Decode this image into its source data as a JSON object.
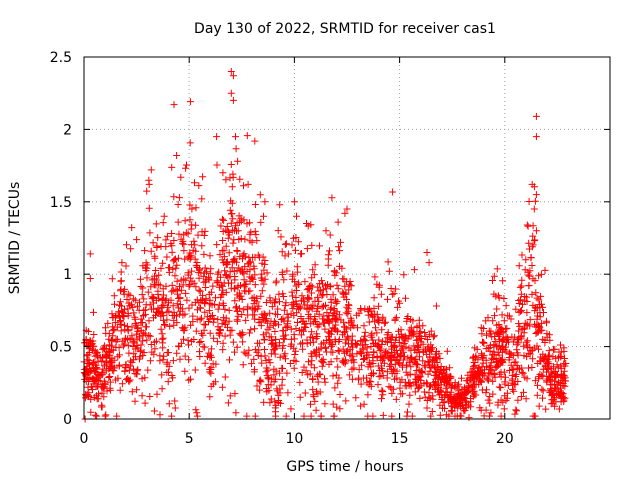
{
  "chart_data": {
    "type": "scatter",
    "title": "Day 130 of 2022, SRMTID for receiver cas1",
    "xlabel": "GPS time / hours",
    "ylabel": "SRMTID / TECUs",
    "xlim": [
      0,
      25
    ],
    "ylim": [
      0,
      2.5
    ],
    "xticks": [
      0,
      5,
      10,
      15,
      20
    ],
    "yticks": [
      0,
      0.5,
      1,
      1.5,
      2,
      2.5
    ],
    "xtick_labels": [
      "0",
      "5",
      "10",
      "15",
      "20"
    ],
    "ytick_labels": [
      "0",
      "0.5",
      "1",
      "1.5",
      "2",
      "2.5"
    ],
    "grid": true,
    "marker": "+",
    "color": "#ff0000",
    "series": [
      {
        "name": "SRMTID",
        "profile": [
          {
            "x": 0.0,
            "y": 0.3
          },
          {
            "x": 0.3,
            "y": 0.4
          },
          {
            "x": 0.6,
            "y": 0.28
          },
          {
            "x": 1.0,
            "y": 0.3
          },
          {
            "x": 1.5,
            "y": 0.55
          },
          {
            "x": 2.0,
            "y": 0.55
          },
          {
            "x": 2.5,
            "y": 0.48
          },
          {
            "x": 3.0,
            "y": 0.75
          },
          {
            "x": 3.5,
            "y": 0.8
          },
          {
            "x": 4.0,
            "y": 0.72
          },
          {
            "x": 4.5,
            "y": 0.8
          },
          {
            "x": 5.0,
            "y": 0.85
          },
          {
            "x": 5.5,
            "y": 0.85
          },
          {
            "x": 6.0,
            "y": 0.6
          },
          {
            "x": 6.5,
            "y": 0.8
          },
          {
            "x": 7.0,
            "y": 1.0
          },
          {
            "x": 7.5,
            "y": 0.85
          },
          {
            "x": 8.0,
            "y": 0.8
          },
          {
            "x": 8.5,
            "y": 0.7
          },
          {
            "x": 9.0,
            "y": 0.45
          },
          {
            "x": 9.5,
            "y": 0.65
          },
          {
            "x": 10.0,
            "y": 0.7
          },
          {
            "x": 10.5,
            "y": 0.65
          },
          {
            "x": 11.0,
            "y": 0.6
          },
          {
            "x": 11.5,
            "y": 0.7
          },
          {
            "x": 12.0,
            "y": 0.65
          },
          {
            "x": 12.5,
            "y": 0.55
          },
          {
            "x": 13.0,
            "y": 0.45
          },
          {
            "x": 13.5,
            "y": 0.45
          },
          {
            "x": 14.0,
            "y": 0.45
          },
          {
            "x": 14.5,
            "y": 0.45
          },
          {
            "x": 15.0,
            "y": 0.45
          },
          {
            "x": 15.5,
            "y": 0.42
          },
          {
            "x": 16.0,
            "y": 0.38
          },
          {
            "x": 16.5,
            "y": 0.35
          },
          {
            "x": 17.0,
            "y": 0.25
          },
          {
            "x": 17.5,
            "y": 0.15
          },
          {
            "x": 18.0,
            "y": 0.12
          },
          {
            "x": 18.5,
            "y": 0.25
          },
          {
            "x": 19.0,
            "y": 0.35
          },
          {
            "x": 19.5,
            "y": 0.4
          },
          {
            "x": 20.0,
            "y": 0.45
          },
          {
            "x": 20.5,
            "y": 0.45
          },
          {
            "x": 21.0,
            "y": 0.6
          },
          {
            "x": 21.3,
            "y": 0.85
          },
          {
            "x": 21.7,
            "y": 0.5
          },
          {
            "x": 22.0,
            "y": 0.4
          },
          {
            "x": 22.3,
            "y": 0.22
          },
          {
            "x": 22.9,
            "y": 0.25
          }
        ],
        "notable_points": [
          {
            "x": 0.05,
            "y": 0.0
          },
          {
            "x": 0.1,
            "y": 0.55
          },
          {
            "x": 0.3,
            "y": 1.14
          },
          {
            "x": 0.3,
            "y": 0.97
          },
          {
            "x": 1.8,
            "y": 1.08
          },
          {
            "x": 3.2,
            "y": 1.72
          },
          {
            "x": 3.1,
            "y": 1.62
          },
          {
            "x": 4.4,
            "y": 1.82
          },
          {
            "x": 4.6,
            "y": 1.67
          },
          {
            "x": 5.6,
            "y": 1.52
          },
          {
            "x": 6.3,
            "y": 1.95
          },
          {
            "x": 6.6,
            "y": 1.7
          },
          {
            "x": 7.0,
            "y": 2.4
          },
          {
            "x": 7.1,
            "y": 2.37
          },
          {
            "x": 7.0,
            "y": 2.25
          },
          {
            "x": 7.1,
            "y": 2.2
          },
          {
            "x": 7.2,
            "y": 1.95
          },
          {
            "x": 7.3,
            "y": 1.78
          },
          {
            "x": 7.8,
            "y": 1.62
          },
          {
            "x": 8.6,
            "y": 1.5
          },
          {
            "x": 9.1,
            "y": 0.05
          },
          {
            "x": 9.3,
            "y": 1.48
          },
          {
            "x": 10.0,
            "y": 1.5
          },
          {
            "x": 10.1,
            "y": 1.4
          },
          {
            "x": 12.5,
            "y": 1.45
          },
          {
            "x": 12.4,
            "y": 1.42
          },
          {
            "x": 15.0,
            "y": 0.8
          },
          {
            "x": 16.3,
            "y": 1.15
          },
          {
            "x": 16.4,
            "y": 1.08
          },
          {
            "x": 18.3,
            "y": 0.01
          },
          {
            "x": 19.2,
            "y": 0.7
          },
          {
            "x": 21.5,
            "y": 2.09
          },
          {
            "x": 21.5,
            "y": 1.95
          },
          {
            "x": 21.3,
            "y": 1.62
          },
          {
            "x": 21.5,
            "y": 1.55
          },
          {
            "x": 21.4,
            "y": 1.45
          },
          {
            "x": 21.5,
            "y": 1.3
          },
          {
            "x": 21.0,
            "y": 1.1
          },
          {
            "x": 22.8,
            "y": 0.38
          }
        ]
      }
    ]
  }
}
